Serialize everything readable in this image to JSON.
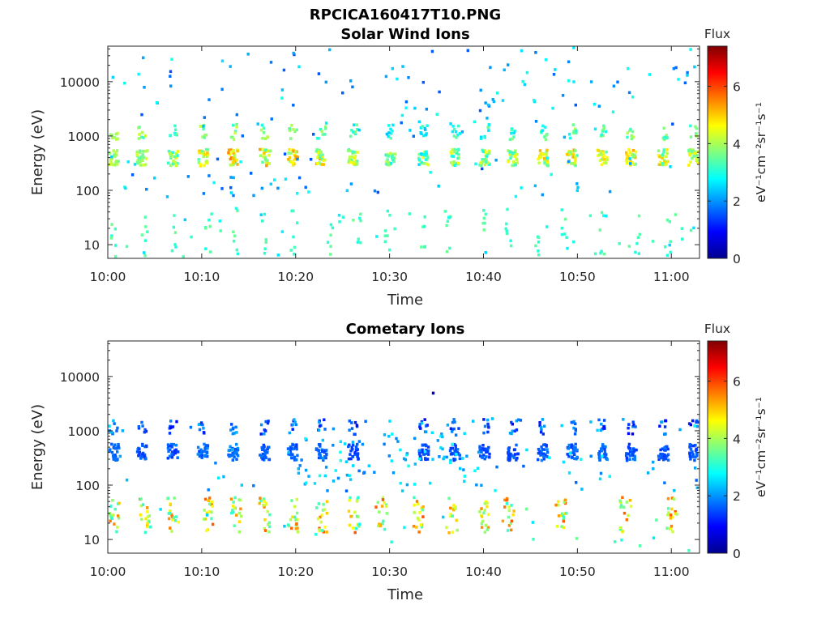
{
  "figure_title": "RPCICA160417T10.PNG",
  "colorbar": {
    "title": "Flux",
    "unit_label": "eV⁻¹cm⁻²sr⁻¹s⁻¹",
    "ticks": [
      "0",
      "2",
      "4",
      "6"
    ],
    "range": [
      0,
      7.4
    ],
    "colormap": "jet"
  },
  "chart_data": [
    {
      "type": "heatmap",
      "title": "Solar Wind Ions",
      "xlabel": "Time",
      "ylabel": "Energy (eV)",
      "x_ticks": [
        "10:00",
        "10:10",
        "10:20",
        "10:30",
        "10:40",
        "10:50",
        "11:00"
      ],
      "y_ticks": [
        "10",
        "100",
        "1000",
        "10000"
      ],
      "y_scale": "log",
      "ylim": [
        5.6,
        45000
      ],
      "xlim_minutes": [
        0,
        63
      ],
      "seed": 17,
      "bursts": [
        {
          "t": 0.5,
          "hi": 4.4,
          "lo": 3.6
        },
        {
          "t": 3.5,
          "hi": 4.5,
          "lo": 3.4
        },
        {
          "t": 6.8,
          "hi": 4.9,
          "lo": 2.9
        },
        {
          "t": 10.0,
          "hi": 5.2,
          "lo": 3.3
        },
        {
          "t": 13.2,
          "hi": 5.6,
          "lo": 3.4
        },
        {
          "t": 16.6,
          "hi": 5.6,
          "lo": 3.3
        },
        {
          "t": 19.6,
          "hi": 5.4,
          "lo": 3.6
        },
        {
          "t": 22.6,
          "hi": 5.3,
          "lo": 3.2
        },
        {
          "t": 26.0,
          "hi": 4.9,
          "lo": 3.2
        },
        {
          "t": 30.0,
          "hi": 4.3,
          "lo": 2.7
        },
        {
          "t": 33.5,
          "hi": 4.5,
          "lo": 2.5
        },
        {
          "t": 36.8,
          "hi": 4.6,
          "lo": 2.7
        },
        {
          "t": 40.0,
          "hi": 4.7,
          "lo": 2.8
        },
        {
          "t": 43.0,
          "hi": 4.7,
          "lo": 3.0
        },
        {
          "t": 46.2,
          "hi": 5.3,
          "lo": 3.2
        },
        {
          "t": 49.3,
          "hi": 5.3,
          "lo": 3.2
        },
        {
          "t": 52.5,
          "hi": 5.2,
          "lo": 3.2
        },
        {
          "t": 55.6,
          "hi": 5.3,
          "lo": 3.3
        },
        {
          "t": 59.0,
          "hi": 5.2,
          "lo": 3.0
        },
        {
          "t": 62.2,
          "hi": 4.8,
          "lo": 3.4
        }
      ],
      "high_band": [
        3.0,
        3.32
      ],
      "noise_level": [
        1.5,
        3.0
      ],
      "low_energy": {
        "minutes": [
          0.5,
          3.8,
          6.8,
          10.5,
          13.5,
          16.6,
          19.6,
          23.5,
          26.5,
          29.6,
          33.5,
          36.0,
          39.9,
          42.5,
          45.5,
          48.5,
          52.5,
          56.2,
          59.5
        ],
        "level": [
          2.9,
          3.6
        ],
        "e_log": [
          0.8,
          1.7
        ]
      }
    },
    {
      "type": "heatmap",
      "title": "Cometary Ions",
      "xlabel": "Time",
      "ylabel": "Energy (eV)",
      "x_ticks": [
        "10:00",
        "10:10",
        "10:20",
        "10:30",
        "10:40",
        "10:50",
        "11:00"
      ],
      "y_ticks": [
        "10",
        "100",
        "1000",
        "10000"
      ],
      "y_scale": "log",
      "ylim": [
        5.6,
        45000
      ],
      "xlim_minutes": [
        0,
        63
      ],
      "seed": 91,
      "bursts": [
        {
          "t": 0.5,
          "hi": 1.8,
          "lo": 1.5
        },
        {
          "t": 3.5,
          "hi": 1.8,
          "lo": 1.3
        },
        {
          "t": 6.8,
          "hi": 1.9,
          "lo": 1.2
        },
        {
          "t": 10.0,
          "hi": 2.0,
          "lo": 1.4
        },
        {
          "t": 13.2,
          "hi": 2.1,
          "lo": 1.5
        },
        {
          "t": 16.6,
          "hi": 1.8,
          "lo": 1.4
        },
        {
          "t": 19.6,
          "hi": 1.9,
          "lo": 1.3
        },
        {
          "t": 22.6,
          "hi": 1.9,
          "lo": 1.4
        },
        {
          "t": 26.0,
          "hi": 1.6,
          "lo": 1.2
        },
        {
          "t": 33.5,
          "hi": 1.6,
          "lo": 1.2
        },
        {
          "t": 36.8,
          "hi": 1.8,
          "lo": 1.3
        },
        {
          "t": 40.0,
          "hi": 1.8,
          "lo": 1.3
        },
        {
          "t": 43.0,
          "hi": 1.9,
          "lo": 1.3
        },
        {
          "t": 46.2,
          "hi": 1.9,
          "lo": 1.3
        },
        {
          "t": 49.3,
          "hi": 1.9,
          "lo": 1.3
        },
        {
          "t": 52.5,
          "hi": 1.9,
          "lo": 1.3
        },
        {
          "t": 55.6,
          "hi": 1.9,
          "lo": 1.3
        },
        {
          "t": 59.0,
          "hi": 1.8,
          "lo": 1.3
        },
        {
          "t": 62.2,
          "hi": 1.7,
          "lo": 1.3
        }
      ],
      "high_band": [
        3.0,
        3.22
      ],
      "noise_level": [
        1.6,
        2.8
      ],
      "low_energy": {
        "minutes": [
          0.5,
          3.8,
          6.8,
          10.5,
          13.5,
          16.6,
          19.6,
          22.6,
          26.0,
          29.0,
          33.0,
          36.5,
          39.9,
          42.5,
          48.0,
          55.0,
          60.0
        ],
        "level": [
          3.0,
          5.9
        ],
        "e_log": [
          1.15,
          1.8
        ]
      },
      "mid_band": {
        "t_range": [
          20,
          38
        ],
        "e_log": [
          2.0,
          3.0
        ],
        "level": [
          1.8,
          3.0
        ]
      },
      "single_points": [
        {
          "t": 34.5,
          "e_log": 3.72,
          "level": 0.4
        }
      ]
    }
  ]
}
